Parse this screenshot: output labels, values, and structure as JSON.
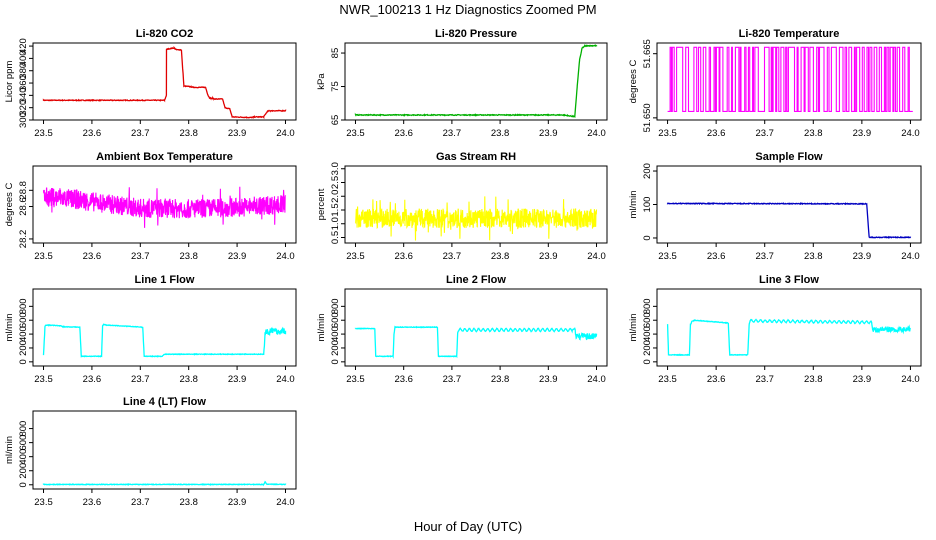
{
  "title": "NWR_100213  1 Hz Diagnostics Zoomed PM",
  "xlabel": "Hour of Day (UTC)",
  "chart_data": [
    {
      "type": "line",
      "title": "Li-820 CO2",
      "ylabel": "Licor ppm",
      "color": "#e00000",
      "xlim": [
        23.5,
        24.0
      ],
      "ylim": [
        300,
        425
      ],
      "xticks": [
        "23.5",
        "23.6",
        "23.7",
        "23.8",
        "23.9",
        "24.0"
      ],
      "yticks": [
        {
          "v": 300,
          "t": "300"
        },
        {
          "v": 320,
          "t": "320"
        },
        {
          "v": 340,
          "t": "340"
        },
        {
          "v": 360,
          "t": "360"
        },
        {
          "v": 380,
          "t": "380"
        },
        {
          "v": 400,
          "t": "400"
        },
        {
          "v": 420,
          "t": "420"
        }
      ],
      "series": [
        {
          "x": [
            23.5,
            23.75,
            23.754,
            23.75,
            23.755,
            23.77,
            23.775,
            23.785,
            23.79,
            23.805,
            23.81,
            23.835,
            23.84,
            23.843,
            23.846,
            23.85,
            23.855,
            23.87,
            23.875,
            23.885,
            23.89,
            23.93,
            23.935,
            23.955,
            23.96,
            23.963,
            23.966,
            23.97,
            24.0
          ],
          "y": [
            332,
            332,
            340,
            410,
            415,
            417,
            414,
            414,
            355,
            354,
            353,
            353,
            340,
            336,
            335,
            335,
            334,
            334,
            320,
            318,
            305,
            304,
            305,
            305,
            311,
            314,
            315,
            315,
            315
          ]
        }
      ]
    },
    {
      "type": "line",
      "title": "Li-820 Pressure",
      "ylabel": "kPa",
      "color": "#00b000",
      "xlim": [
        23.5,
        24.0
      ],
      "ylim": [
        65,
        88
      ],
      "xticks": [
        "23.5",
        "23.6",
        "23.7",
        "23.8",
        "23.9",
        "24.0"
      ],
      "yticks": [
        {
          "v": 65,
          "t": "65"
        },
        {
          "v": 75,
          "t": "75"
        },
        {
          "v": 85,
          "t": "85"
        }
      ],
      "series": [
        {
          "x": [
            23.5,
            23.93,
            23.94,
            23.95,
            23.955,
            23.96,
            23.965,
            23.97,
            23.975,
            23.98,
            24.0
          ],
          "y": [
            66.5,
            66.5,
            66.3,
            66.1,
            66.0,
            75,
            83,
            86.5,
            87.0,
            87.2,
            87.2
          ]
        }
      ]
    },
    {
      "type": "line",
      "title": "Li-820 Temperature",
      "ylabel": "degrees C",
      "color": "#ff00ff",
      "xlim": [
        23.5,
        24.0
      ],
      "ylim": [
        51.6495,
        51.6675
      ],
      "xticks": [
        "23.5",
        "23.6",
        "23.7",
        "23.8",
        "23.9",
        "24.0"
      ],
      "yticks": [
        {
          "v": 51.65,
          "t": "51.650"
        },
        {
          "v": 51.665,
          "t": "51.665"
        }
      ],
      "series": [
        {
          "x": [
            23.5,
            24.0
          ],
          "y": [
            51.6515,
            51.6665
          ]
        }
      ]
    },
    {
      "type": "line",
      "title": "Ambient Box Temperature",
      "ylabel": "degrees C",
      "color": "#ff00ff",
      "xlim": [
        23.5,
        24.0
      ],
      "ylim": [
        28.15,
        29.1
      ],
      "xticks": [
        "23.5",
        "23.6",
        "23.7",
        "23.8",
        "23.9",
        "24.0"
      ],
      "yticks": [
        {
          "v": 28.2,
          "t": "28.2"
        },
        {
          "v": 28.6,
          "t": "28.6"
        },
        {
          "v": 28.8,
          "t": "28.8"
        }
      ],
      "series": [
        {
          "x": [
            23.5,
            23.55,
            23.6,
            23.65,
            23.7,
            23.75,
            23.8,
            23.85,
            23.9,
            23.95,
            24.0
          ],
          "y": [
            28.72,
            28.7,
            28.66,
            28.62,
            28.58,
            28.58,
            28.57,
            28.58,
            28.59,
            28.61,
            28.63
          ]
        }
      ]
    },
    {
      "type": "line",
      "title": "Gas Stream RH",
      "ylabel": "percent",
      "color": "#ffff00",
      "xlim": [
        23.5,
        24.0
      ],
      "ylim": [
        0.3,
        3.1
      ],
      "xticks": [
        "23.5",
        "23.6",
        "23.7",
        "23.8",
        "23.9",
        "24.0"
      ],
      "yticks": [
        {
          "v": 0.5,
          "t": "0.5"
        },
        {
          "v": 1.0,
          "t": "1.0"
        },
        {
          "v": 1.5,
          "t": "1.5"
        },
        {
          "v": 2.0,
          "t": "2.0"
        },
        {
          "v": 2.5,
          "t": "2.5"
        },
        {
          "v": 3.0,
          "t": "3.0"
        }
      ],
      "series": [
        {
          "x": [
            23.5,
            24.0
          ],
          "y": [
            1.2,
            1.2
          ]
        }
      ]
    },
    {
      "type": "line",
      "title": "Sample Flow",
      "ylabel": "ml/min",
      "color": "#0000c0",
      "xlim": [
        23.5,
        24.0
      ],
      "ylim": [
        -15,
        215
      ],
      "xticks": [
        "23.5",
        "23.6",
        "23.7",
        "23.8",
        "23.9",
        "24.0"
      ],
      "yticks": [
        {
          "v": 0,
          "t": "0"
        },
        {
          "v": 100,
          "t": "100"
        },
        {
          "v": 200,
          "t": "200"
        }
      ],
      "series": [
        {
          "x": [
            23.5,
            23.91,
            23.915,
            24.0
          ],
          "y": [
            103,
            102,
            2,
            2
          ]
        }
      ]
    },
    {
      "type": "line",
      "title": "Line 1 Flow",
      "ylabel": "ml/min",
      "color": "#00ffff",
      "xlim": [
        23.5,
        24.0
      ],
      "ylim": [
        -60,
        1050
      ],
      "xticks": [
        "23.5",
        "23.6",
        "23.7",
        "23.8",
        "23.9",
        "24.0"
      ],
      "yticks": [
        {
          "v": 0,
          "t": "0"
        },
        {
          "v": 200,
          "t": "200"
        },
        {
          "v": 400,
          "t": "400"
        },
        {
          "v": 600,
          "t": "600"
        },
        {
          "v": 800,
          "t": "800"
        }
      ],
      "series": [
        {
          "x": [
            23.5,
            23.503,
            23.505,
            23.51,
            23.535,
            23.54,
            23.575,
            23.578,
            23.58,
            23.62,
            23.622,
            23.624,
            23.63,
            23.705,
            23.708,
            23.71,
            23.745,
            23.75,
            23.955,
            23.958,
            23.96,
            24.0
          ],
          "y": [
            100,
            510,
            530,
            530,
            520,
            505,
            500,
            80,
            80,
            80,
            520,
            540,
            530,
            500,
            80,
            80,
            80,
            110,
            110,
            420,
            440,
            440
          ]
        }
      ]
    },
    {
      "type": "line",
      "title": "Line 2 Flow",
      "ylabel": "ml/min",
      "color": "#00ffff",
      "xlim": [
        23.5,
        24.0
      ],
      "ylim": [
        -60,
        1050
      ],
      "xticks": [
        "23.5",
        "23.6",
        "23.7",
        "23.8",
        "23.9",
        "24.0"
      ],
      "yticks": [
        {
          "v": 0,
          "t": "0"
        },
        {
          "v": 200,
          "t": "200"
        },
        {
          "v": 400,
          "t": "400"
        },
        {
          "v": 600,
          "t": "600"
        },
        {
          "v": 800,
          "t": "800"
        }
      ],
      "series": [
        {
          "x": [
            23.5,
            23.54,
            23.542,
            23.578,
            23.58,
            23.582,
            23.67,
            23.672,
            23.71,
            23.712,
            23.715,
            23.95,
            23.955,
            23.958,
            24.0
          ],
          "y": [
            480,
            480,
            80,
            80,
            400,
            500,
            500,
            80,
            80,
            420,
            460,
            460,
            480,
            370,
            370
          ]
        }
      ]
    },
    {
      "type": "line",
      "title": "Line 3 Flow",
      "ylabel": "ml/min",
      "color": "#00ffff",
      "xlim": [
        23.5,
        24.0
      ],
      "ylim": [
        -60,
        1050
      ],
      "xticks": [
        "23.5",
        "23.6",
        "23.7",
        "23.8",
        "23.9",
        "24.0"
      ],
      "yticks": [
        {
          "v": 0,
          "t": "0"
        },
        {
          "v": 200,
          "t": "200"
        },
        {
          "v": 400,
          "t": "400"
        },
        {
          "v": 600,
          "t": "600"
        },
        {
          "v": 800,
          "t": "800"
        }
      ],
      "series": [
        {
          "x": [
            23.5,
            23.502,
            23.545,
            23.547,
            23.55,
            23.555,
            23.625,
            23.628,
            23.665,
            23.668,
            23.67,
            23.92,
            23.922,
            24.0
          ],
          "y": [
            540,
            100,
            100,
            530,
            580,
            600,
            560,
            100,
            100,
            540,
            590,
            570,
            470,
            470
          ]
        }
      ]
    },
    {
      "type": "line",
      "title": "Line 4 (LT) Flow",
      "ylabel": "ml/min",
      "color": "#00ffff",
      "xlim": [
        23.5,
        24.0
      ],
      "ylim": [
        -60,
        1050
      ],
      "xticks": [
        "23.5",
        "23.6",
        "23.7",
        "23.8",
        "23.9",
        "24.0"
      ],
      "yticks": [
        {
          "v": 0,
          "t": "0"
        },
        {
          "v": 200,
          "t": "200"
        },
        {
          "v": 400,
          "t": "400"
        },
        {
          "v": 600,
          "t": "600"
        },
        {
          "v": 800,
          "t": "800"
        }
      ],
      "series": [
        {
          "x": [
            23.5,
            23.955,
            23.958,
            23.961,
            24.0
          ],
          "y": [
            5,
            5,
            45,
            8,
            5
          ]
        }
      ]
    }
  ]
}
